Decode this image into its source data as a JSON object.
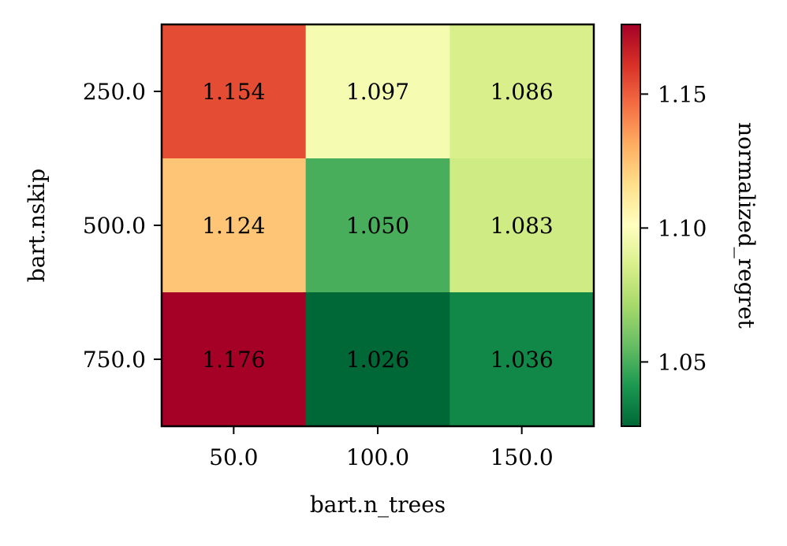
{
  "chart_data": {
    "type": "heatmap",
    "title": "",
    "xlabel": "bart.n_trees",
    "ylabel": "bart.nskip",
    "x_categories": [
      "50.0",
      "100.0",
      "150.0"
    ],
    "y_categories": [
      "250.0",
      "500.0",
      "750.0"
    ],
    "values": [
      [
        1.154,
        1.097,
        1.086
      ],
      [
        1.124,
        1.05,
        1.083
      ],
      [
        1.176,
        1.026,
        1.036
      ]
    ],
    "cell_labels": [
      [
        "1.154",
        "1.097",
        "1.086"
      ],
      [
        "1.124",
        "1.050",
        "1.083"
      ],
      [
        "1.176",
        "1.026",
        "1.036"
      ]
    ],
    "colormap": "RdYlGn_r",
    "vmin": 1.026,
    "vmax": 1.176,
    "colorbar": {
      "label": "normalized_regret",
      "ticks": [
        1.05,
        1.1,
        1.15
      ],
      "tick_labels": [
        "1.05",
        "1.10",
        "1.15"
      ]
    },
    "grid": false
  }
}
